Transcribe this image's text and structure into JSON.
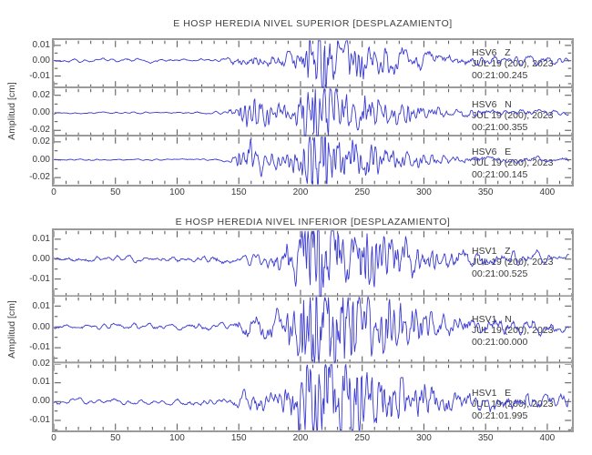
{
  "colors": {
    "trace": "#3a3ad0",
    "frame": "#9a9a9a",
    "tick": "#5f5f5f",
    "text": "#3a3a3a"
  },
  "chart_data": [
    {
      "type": "line",
      "title": "E HOSP HEREDIA NIVEL SUPERIOR [DESPLAZAMIENTO]",
      "ylabel": "Amplitud [cm]",
      "xlim": [
        0,
        420
      ],
      "x_minor_step": 10,
      "grid": false,
      "legend": false,
      "xticks": [
        {
          "v": 0,
          "label": "0"
        },
        {
          "v": 50,
          "label": "50"
        },
        {
          "v": 100,
          "label": "100"
        },
        {
          "v": 150,
          "label": "150"
        },
        {
          "v": 200,
          "label": "200"
        },
        {
          "v": 250,
          "label": "250"
        },
        {
          "v": 300,
          "label": "300"
        },
        {
          "v": 350,
          "label": "350"
        },
        {
          "v": 400,
          "label": "400"
        }
      ],
      "traces": [
        {
          "label": "HSV6   Z",
          "date": "JUL 19 (200), 2023",
          "time": "00:21:00.245",
          "ylim": [
            0.0135,
            -0.018
          ],
          "minor_step": 0.005,
          "seed": 7,
          "tmax": 418,
          "yticks": [
            {
              "v": 0.01,
              "label": "0.01"
            },
            {
              "v": 0,
              "label": "0.00"
            },
            {
              "v": -0.01,
              "label": "-0.01"
            }
          ],
          "envelope_cm": [
            [
              0,
              0.0006
            ],
            [
              60,
              0.0007
            ],
            [
              120,
              0.0007
            ],
            [
              140,
              0.001
            ],
            [
              148,
              0.0022
            ],
            [
              160,
              0.0028
            ],
            [
              175,
              0.0024
            ],
            [
              188,
              0.0028
            ],
            [
              196,
              0.005
            ],
            [
              203,
              0.008
            ],
            [
              209,
              0.011
            ],
            [
              214,
              0.014
            ],
            [
              218,
              0.017
            ],
            [
              223,
              0.011
            ],
            [
              230,
              0.009
            ],
            [
              240,
              0.0075
            ],
            [
              252,
              0.006
            ],
            [
              265,
              0.0048
            ],
            [
              280,
              0.0038
            ],
            [
              300,
              0.003
            ],
            [
              320,
              0.0024
            ],
            [
              345,
              0.002
            ],
            [
              380,
              0.0017
            ],
            [
              418,
              0.0015
            ]
          ]
        },
        {
          "label": "HSV6   N",
          "date": "JUL 19 (200), 2023",
          "time": "00:21:00.355",
          "ylim": [
            0.028,
            -0.027
          ],
          "minor_step": 0.01,
          "seed": 13,
          "tmax": 418,
          "yticks": [
            {
              "v": 0.02,
              "label": "0.02"
            },
            {
              "v": 0,
              "label": "0.00"
            },
            {
              "v": -0.02,
              "label": "-0.02"
            }
          ],
          "envelope_cm": [
            [
              0,
              0.0005
            ],
            [
              100,
              0.0006
            ],
            [
              138,
              0.0008
            ],
            [
              146,
              0.0035
            ],
            [
              153,
              0.0075
            ],
            [
              160,
              0.009
            ],
            [
              168,
              0.0085
            ],
            [
              176,
              0.006
            ],
            [
              184,
              0.0045
            ],
            [
              192,
              0.0055
            ],
            [
              199,
              0.011
            ],
            [
              205,
              0.019
            ],
            [
              211,
              0.026
            ],
            [
              217,
              0.021
            ],
            [
              224,
              0.024
            ],
            [
              231,
              0.017
            ],
            [
              240,
              0.013
            ],
            [
              250,
              0.011
            ],
            [
              261,
              0.0085
            ],
            [
              272,
              0.0065
            ],
            [
              285,
              0.005
            ],
            [
              300,
              0.004
            ],
            [
              320,
              0.003
            ],
            [
              350,
              0.0024
            ],
            [
              418,
              0.002
            ]
          ]
        },
        {
          "label": "HSV6   E",
          "date": "JUL 19 (200), 2023",
          "time": "00:21:00.145",
          "ylim": [
            0.026,
            -0.028
          ],
          "minor_step": 0.01,
          "seed": 21,
          "tmax": 418,
          "yticks": [
            {
              "v": 0.02,
              "label": "0.02"
            },
            {
              "v": 0,
              "label": "0.00"
            },
            {
              "v": -0.02,
              "label": "-0.02"
            }
          ],
          "envelope_cm": [
            [
              0,
              0.0005
            ],
            [
              100,
              0.0006
            ],
            [
              142,
              0.001
            ],
            [
              149,
              0.0055
            ],
            [
              156,
              0.0095
            ],
            [
              164,
              0.009
            ],
            [
              172,
              0.0065
            ],
            [
              181,
              0.005
            ],
            [
              190,
              0.0058
            ],
            [
              199,
              0.009
            ],
            [
              207,
              0.014
            ],
            [
              214,
              0.022
            ],
            [
              220,
              0.028
            ],
            [
              227,
              0.021
            ],
            [
              234,
              0.016
            ],
            [
              244,
              0.012
            ],
            [
              255,
              0.0095
            ],
            [
              268,
              0.007
            ],
            [
              282,
              0.0052
            ],
            [
              300,
              0.004
            ],
            [
              325,
              0.003
            ],
            [
              355,
              0.0024
            ],
            [
              418,
              0.002
            ]
          ]
        }
      ]
    },
    {
      "type": "line",
      "title": "E HOSP HEREDIA NIVEL INFERIOR [DESPLAZAMIENTO]",
      "ylabel": "Amplitud [cm]",
      "xlim": [
        0,
        420
      ],
      "x_minor_step": 10,
      "grid": false,
      "legend": false,
      "xticks": [
        {
          "v": 0,
          "label": "0"
        },
        {
          "v": 50,
          "label": "50"
        },
        {
          "v": 100,
          "label": "100"
        },
        {
          "v": 150,
          "label": "150"
        },
        {
          "v": 200,
          "label": "200"
        },
        {
          "v": 250,
          "label": "250"
        },
        {
          "v": 300,
          "label": "300"
        },
        {
          "v": 350,
          "label": "350"
        },
        {
          "v": 400,
          "label": "400"
        }
      ],
      "traces": [
        {
          "label": "HSV1   Z",
          "date": "JUL 19 (200), 2023",
          "time": "00:21:00.525",
          "ylim": [
            0.0145,
            -0.019
          ],
          "minor_step": 0.005,
          "seed": 35,
          "tmax": 418,
          "yticks": [
            {
              "v": 0.01,
              "label": "0.01"
            },
            {
              "v": 0,
              "label": "0.00"
            },
            {
              "v": -0.01,
              "label": "-0.01"
            }
          ],
          "envelope_cm": [
            [
              0,
              0.0008
            ],
            [
              80,
              0.001
            ],
            [
              140,
              0.0012
            ],
            [
              155,
              0.0016
            ],
            [
              170,
              0.0022
            ],
            [
              183,
              0.0032
            ],
            [
              193,
              0.005
            ],
            [
              200,
              0.008
            ],
            [
              206,
              0.012
            ],
            [
              212,
              0.015
            ],
            [
              217,
              0.017
            ],
            [
              223,
              0.012
            ],
            [
              231,
              0.01
            ],
            [
              241,
              0.0085
            ],
            [
              252,
              0.0072
            ],
            [
              263,
              0.006
            ],
            [
              276,
              0.005
            ],
            [
              290,
              0.0042
            ],
            [
              308,
              0.0033
            ],
            [
              330,
              0.0027
            ],
            [
              360,
              0.0022
            ],
            [
              418,
              0.0019
            ]
          ]
        },
        {
          "label": "HSV1   N",
          "date": "JUL 19 (200), 2023",
          "time": "00:21:00.000",
          "ylim": [
            0.0145,
            -0.0175
          ],
          "minor_step": 0.005,
          "seed": 49,
          "tmax": 418,
          "yticks": [
            {
              "v": 0.01,
              "label": "0.01"
            },
            {
              "v": 0,
              "label": "0.00"
            },
            {
              "v": -0.01,
              "label": "-0.01"
            }
          ],
          "envelope_cm": [
            [
              0,
              0.0008
            ],
            [
              90,
              0.001
            ],
            [
              142,
              0.0012
            ],
            [
              150,
              0.0022
            ],
            [
              162,
              0.0028
            ],
            [
              176,
              0.0032
            ],
            [
              188,
              0.0042
            ],
            [
              196,
              0.007
            ],
            [
              202,
              0.012
            ],
            [
              208,
              0.016
            ],
            [
              216,
              0.013
            ],
            [
              224,
              0.015
            ],
            [
              232,
              0.012
            ],
            [
              240,
              0.0135
            ],
            [
              249,
              0.011
            ],
            [
              258,
              0.0092
            ],
            [
              268,
              0.0075
            ],
            [
              279,
              0.006
            ],
            [
              292,
              0.0046
            ],
            [
              308,
              0.0036
            ],
            [
              330,
              0.0028
            ],
            [
              360,
              0.0023
            ],
            [
              418,
              0.002
            ]
          ]
        },
        {
          "label": "HSV1   E",
          "date": "JUL 19 (200), 2023",
          "time": "00:21:01.995",
          "ylim": [
            0.02,
            -0.0155
          ],
          "minor_step": 0.005,
          "seed": 63,
          "tmax": 418,
          "yticks": [
            {
              "v": 0.02,
              "label": "0.02"
            },
            {
              "v": 0.01,
              "label": "0.01"
            },
            {
              "v": 0,
              "label": "0.00"
            },
            {
              "v": -0.01,
              "label": "-0.01"
            }
          ],
          "envelope_cm": [
            [
              0,
              0.0008
            ],
            [
              90,
              0.001
            ],
            [
              143,
              0.0013
            ],
            [
              149,
              0.0032
            ],
            [
              157,
              0.0042
            ],
            [
              166,
              0.0032
            ],
            [
              178,
              0.003
            ],
            [
              188,
              0.0042
            ],
            [
              197,
              0.0062
            ],
            [
              204,
              0.01
            ],
            [
              210,
              0.018
            ],
            [
              216,
              0.022
            ],
            [
              222,
              0.016
            ],
            [
              230,
              0.0125
            ],
            [
              240,
              0.0105
            ],
            [
              251,
              0.0088
            ],
            [
              263,
              0.0072
            ],
            [
              277,
              0.0058
            ],
            [
              292,
              0.0048
            ],
            [
              310,
              0.0038
            ],
            [
              335,
              0.003
            ],
            [
              365,
              0.0026
            ],
            [
              418,
              0.0023
            ]
          ]
        }
      ]
    }
  ]
}
